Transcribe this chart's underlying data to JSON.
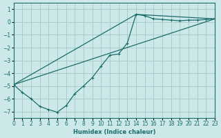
{
  "xlabel": "Humidex (Indice chaleur)",
  "ylabel": "",
  "bg_color": "#cce8e8",
  "grid_color": "#aacccc",
  "line_color": "#1a6b6b",
  "xlim": [
    0,
    23
  ],
  "ylim": [
    -7.5,
    1.5
  ],
  "xticks": [
    0,
    1,
    2,
    3,
    4,
    5,
    6,
    7,
    8,
    9,
    10,
    11,
    12,
    13,
    14,
    15,
    16,
    17,
    18,
    19,
    20,
    21,
    22,
    23
  ],
  "yticks": [
    -7,
    -6,
    -5,
    -4,
    -3,
    -2,
    -1,
    0,
    1
  ],
  "series1_x": [
    0,
    1,
    2,
    3,
    4,
    5,
    6,
    7,
    8,
    9,
    10,
    11,
    12,
    13,
    14,
    15,
    16,
    17,
    18,
    19,
    20,
    21,
    22,
    23
  ],
  "series1_y": [
    -4.9,
    -5.5,
    -6.0,
    -6.6,
    -6.85,
    -7.05,
    -6.55,
    -5.6,
    -5.0,
    -4.35,
    -3.45,
    -2.6,
    -2.5,
    -1.65,
    0.6,
    0.5,
    0.25,
    0.2,
    0.15,
    0.1,
    0.15,
    0.15,
    0.2,
    0.25
  ],
  "series2_x": [
    0,
    14,
    23
  ],
  "series2_y": [
    -4.9,
    0.6,
    0.25
  ],
  "series3_x": [
    0,
    23
  ],
  "series3_y": [
    -4.9,
    0.25
  ]
}
